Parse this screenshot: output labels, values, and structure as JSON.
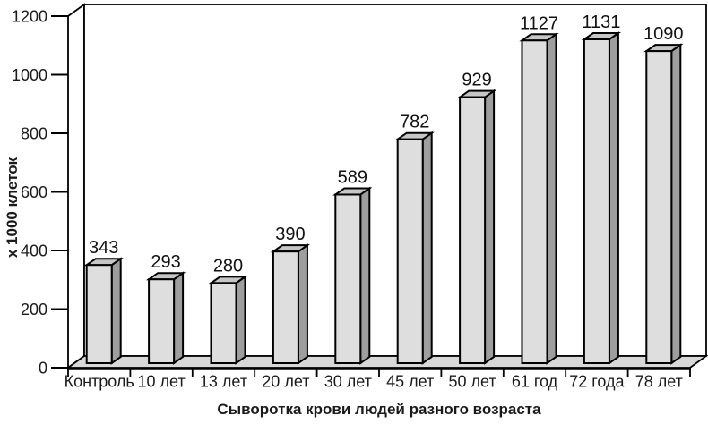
{
  "chart_data": {
    "type": "bar",
    "style": "3d-bars",
    "title": "",
    "xlabel": "Сыворотка крови людей разного возраста",
    "ylabel": "х 1000 клеток",
    "categories": [
      "Контроль",
      "10 лет",
      "13 лет",
      "20 лет",
      "30 лет",
      "45 лет",
      "50 лет",
      "61 год",
      "72 года",
      "78 лет"
    ],
    "values": [
      343,
      293,
      280,
      390,
      589,
      782,
      929,
      1127,
      1131,
      1090
    ],
    "value_labels": [
      "343",
      "293",
      "280",
      "390",
      "589",
      "782",
      "929",
      "1127",
      "1131",
      "1090"
    ],
    "ylim": [
      0,
      1200
    ],
    "yticks": [
      0,
      200,
      400,
      600,
      800,
      1000,
      1200
    ],
    "grid": false,
    "legend": null,
    "colors": {
      "bar_front": "#dedede",
      "bar_top": "#c6c6c6",
      "bar_side": "#9e9e9e",
      "floor": "#d8d8d8",
      "wall": "#ffffff",
      "outline": "#000000",
      "text": "#1a1a1a"
    }
  }
}
